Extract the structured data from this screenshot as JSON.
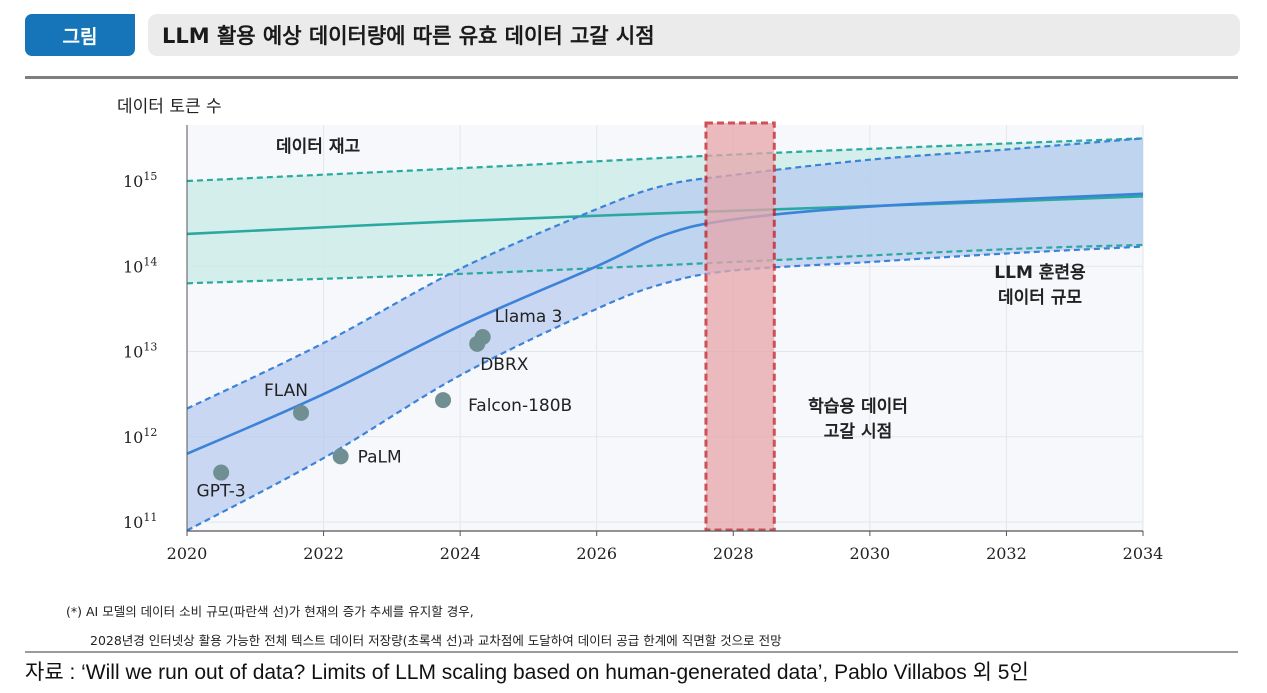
{
  "header": {
    "badge": "그림",
    "title": "LLM 활용 예상 데이터량에 따른 유효 데이터 고갈 시점"
  },
  "chart_data": {
    "type": "line",
    "ylabel": "데이터 토큰 수",
    "yscale": "log",
    "xlim": [
      2020,
      2034
    ],
    "ylim_log10": [
      11,
      15.5
    ],
    "x_ticks": [
      "2020",
      "2022",
      "2024",
      "2026",
      "2028",
      "2030",
      "2032",
      "2034"
    ],
    "y_ticks": [
      {
        "base": "10",
        "exp": "15",
        "log": 15
      },
      {
        "base": "10",
        "exp": "14",
        "log": 14
      },
      {
        "base": "10",
        "exp": "13",
        "log": 13
      },
      {
        "base": "10",
        "exp": "12",
        "log": 12
      },
      {
        "base": "10",
        "exp": "11",
        "log": 11
      }
    ],
    "series": [
      {
        "name": "데이터 재고",
        "color": "#2aa9a0",
        "band_color": "#cdece8",
        "x": [
          2020,
          2024,
          2028,
          2032,
          2034
        ],
        "median_log": [
          14.38,
          14.53,
          14.65,
          14.76,
          14.82
        ],
        "upper_log": [
          15.0,
          15.15,
          15.31,
          15.44,
          15.5
        ],
        "lower_log": [
          13.8,
          13.91,
          14.05,
          14.2,
          14.25
        ]
      },
      {
        "name": "LLM 훈련용 데이터 규모",
        "color": "#3a83d9",
        "band_color": "#b7c9f0",
        "x": [
          2020,
          2022,
          2024,
          2026,
          2027,
          2028,
          2030,
          2032,
          2034
        ],
        "median_log": [
          11.8,
          12.5,
          13.3,
          14.0,
          14.37,
          14.55,
          14.7,
          14.78,
          14.85
        ],
        "upper_log": [
          12.33,
          13.1,
          13.97,
          14.67,
          14.95,
          15.07,
          15.25,
          15.37,
          15.5
        ],
        "lower_log": [
          10.9,
          11.75,
          12.72,
          13.5,
          13.8,
          13.95,
          14.05,
          14.15,
          14.23
        ]
      }
    ],
    "points": [
      {
        "label": "GPT-3",
        "x": 2020.5,
        "log": 11.58
      },
      {
        "label": "FLAN",
        "x": 2021.67,
        "log": 12.28
      },
      {
        "label": "PaLM",
        "x": 2022.25,
        "log": 11.77
      },
      {
        "label": "Falcon-180B",
        "x": 2023.75,
        "log": 12.43
      },
      {
        "label": "DBRX",
        "x": 2024.25,
        "log": 13.09
      },
      {
        "label": "Llama 3",
        "x": 2024.33,
        "log": 13.17
      }
    ],
    "depletion_window": {
      "x_start": 2027.6,
      "x_end": 2028.6
    },
    "annotations": {
      "stock": "데이터 재고",
      "training_line1": "LLM 훈련용",
      "training_line2": "데이터 규모",
      "depletion_line1": "학습용 데이터",
      "depletion_line2": "고갈 시점"
    },
    "colors": {
      "stock_label": "#2aa9a0",
      "training_label": "#2f6fb5",
      "depletion_label": "#c0181f",
      "points": "#6f8f92"
    }
  },
  "footnote": {
    "line1": "(*) AI 모델의 데이터 소비 규모(파란색 선)가 현재의 증가 추세를 유지할 경우,",
    "line2": "2028년경 인터넷상 활용 가능한 전체 텍스트 데이터 저장량(초록색 선)과 교차점에 도달하여 데이터 공급 한계에 직면할 것으로 전망"
  },
  "source": "자료 : ‘Will we run out of data? Limits of LLM scaling based on human-generated data’, Pablo Villabos 외 5인"
}
